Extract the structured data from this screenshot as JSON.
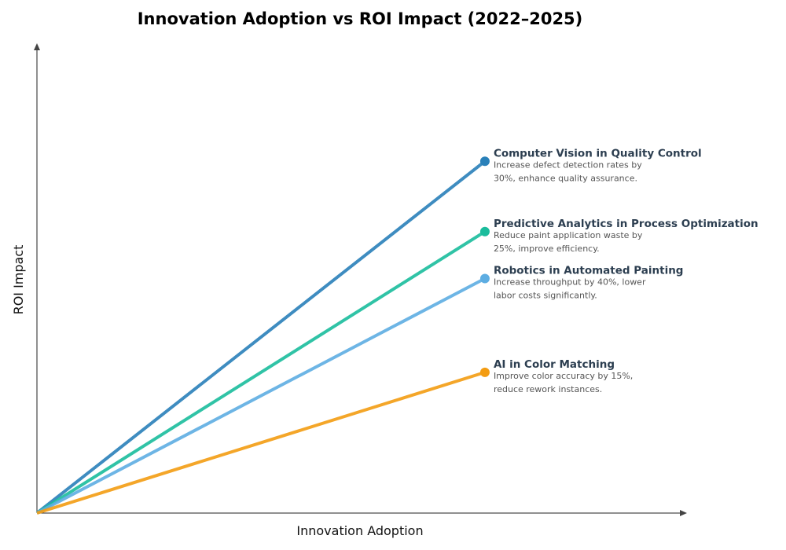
{
  "chart_data": {
    "type": "line",
    "title": "Innovation Adoption vs ROI Impact (2022–2025)",
    "xlabel": "Innovation Adoption",
    "ylabel": "ROI Impact",
    "xlim": [
      0,
      1
    ],
    "ylim": [
      0,
      1
    ],
    "grid": false,
    "ticks": false,
    "series": [
      {
        "name": "Computer Vision in Quality Control",
        "description": [
          "Increase defect detection rates by",
          "30%, enhance quality assurance."
        ],
        "x": [
          0,
          0.69
        ],
        "y": [
          0,
          0.75
        ],
        "color": "#2980b9"
      },
      {
        "name": "Predictive Analytics in Process Optimization",
        "description": [
          "Reduce paint application waste by",
          "25%, improve efficiency."
        ],
        "x": [
          0,
          0.69
        ],
        "y": [
          0,
          0.6
        ],
        "color": "#1abc9c"
      },
      {
        "name": "Robotics in Automated Painting",
        "description": [
          "Increase throughput by 40%, lower",
          "labor costs significantly."
        ],
        "x": [
          0,
          0.69
        ],
        "y": [
          0,
          0.5
        ],
        "color": "#5dade2"
      },
      {
        "name": "AI in Color Matching",
        "description": [
          "Improve color accuracy by 15%,",
          "reduce rework instances."
        ],
        "x": [
          0,
          0.69
        ],
        "y": [
          0,
          0.3
        ],
        "color": "#f39c12"
      }
    ]
  }
}
